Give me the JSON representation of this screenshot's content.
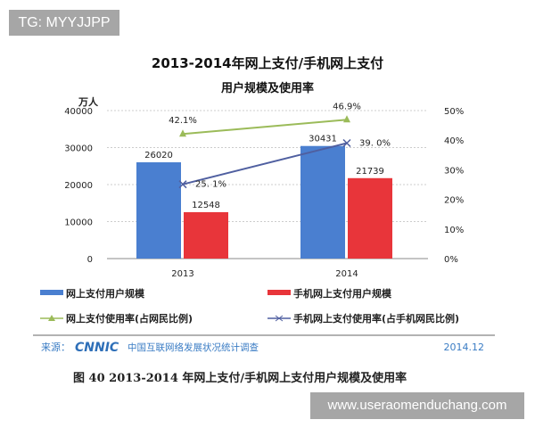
{
  "watermark_top": "TG: MYYJJPP",
  "watermark_bottom": "www.useraomenduchang.com",
  "chart_data": {
    "type": "bar+line",
    "title": "2013-2014年网上支付/手机网上支付",
    "subtitle": "用户规模及使用率",
    "ylabel": "万人",
    "categories": [
      "2013",
      "2014"
    ],
    "ylim": [
      0,
      40000
    ],
    "yticks": [
      "0",
      "10000",
      "20000",
      "30000",
      "40000"
    ],
    "y2lim": [
      0,
      50
    ],
    "y2ticks": [
      "0%",
      "10%",
      "20%",
      "30%",
      "40%",
      "50%"
    ],
    "grid": true,
    "legend_placement": "bottom",
    "bar_series": [
      {
        "name": "网上支付用户规模",
        "values": [
          26020,
          30431
        ],
        "labels": [
          "26020",
          "30431"
        ],
        "color": "#4a7fd0"
      },
      {
        "name": "手机网上支付用户规模",
        "values": [
          12548,
          21739
        ],
        "labels": [
          "12548",
          "21739"
        ],
        "color": "#e8353a"
      }
    ],
    "line_series": [
      {
        "name": "网上支付使用率(占网民比例)",
        "values": [
          42.1,
          46.9
        ],
        "labels": [
          "42.1%",
          "46.9%"
        ],
        "color": "#9bbb59",
        "marker": "triangle"
      },
      {
        "name": "手机网上支付使用率(占手机网民比例)",
        "values": [
          25.1,
          39.0
        ],
        "labels": [
          "25. 1%",
          "39. 0%"
        ],
        "color": "#4f5fa0",
        "marker": "x"
      }
    ],
    "source_label": "来源：",
    "source_logo": "CNNIC",
    "source_text": "中国互联网络发展状况统计调查",
    "date": "2014.12",
    "caption": "图  40    2013-2014 年网上支付/手机网上支付用户规模及使用率"
  }
}
